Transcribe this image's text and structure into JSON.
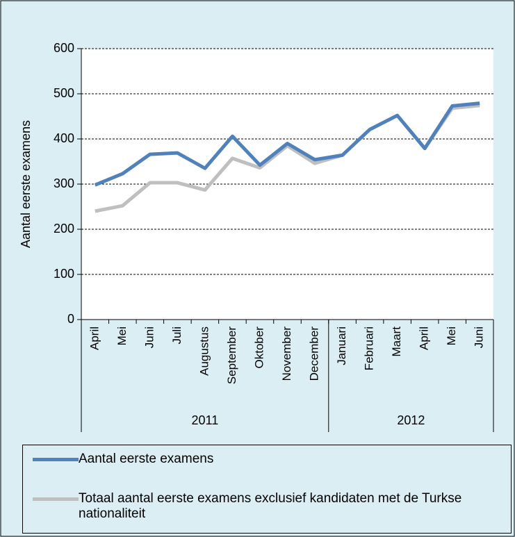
{
  "chart_data": {
    "type": "line",
    "y_label": "Aantal eerste examens",
    "groups": [
      {
        "name": "2011",
        "categories": [
          "April",
          "Mei",
          "Juni",
          "Juli",
          "Augustus",
          "September",
          "Oktober",
          "November",
          "December"
        ]
      },
      {
        "name": "2012",
        "categories": [
          "Januari",
          "Februari",
          "Maart",
          "April",
          "Mei",
          "Juni"
        ]
      }
    ],
    "series": [
      {
        "name": "Aantal eerste examens",
        "color": "#4f81bd",
        "values": [
          298,
          323,
          366,
          369,
          335,
          406,
          342,
          390,
          354,
          364,
          421,
          452,
          379,
          473,
          479
        ]
      },
      {
        "name": "Totaal aantal eerste examens exclusief kandidaten met de Turkse nationaliteit",
        "color": "#bfbfbf",
        "values": [
          240,
          252,
          303,
          303,
          287,
          357,
          336,
          385,
          346,
          364,
          421,
          452,
          379,
          468,
          474
        ]
      }
    ],
    "ylim": [
      0,
      600
    ],
    "yticks": [
      0,
      100,
      200,
      300,
      400,
      500,
      600
    ],
    "grid": true
  }
}
